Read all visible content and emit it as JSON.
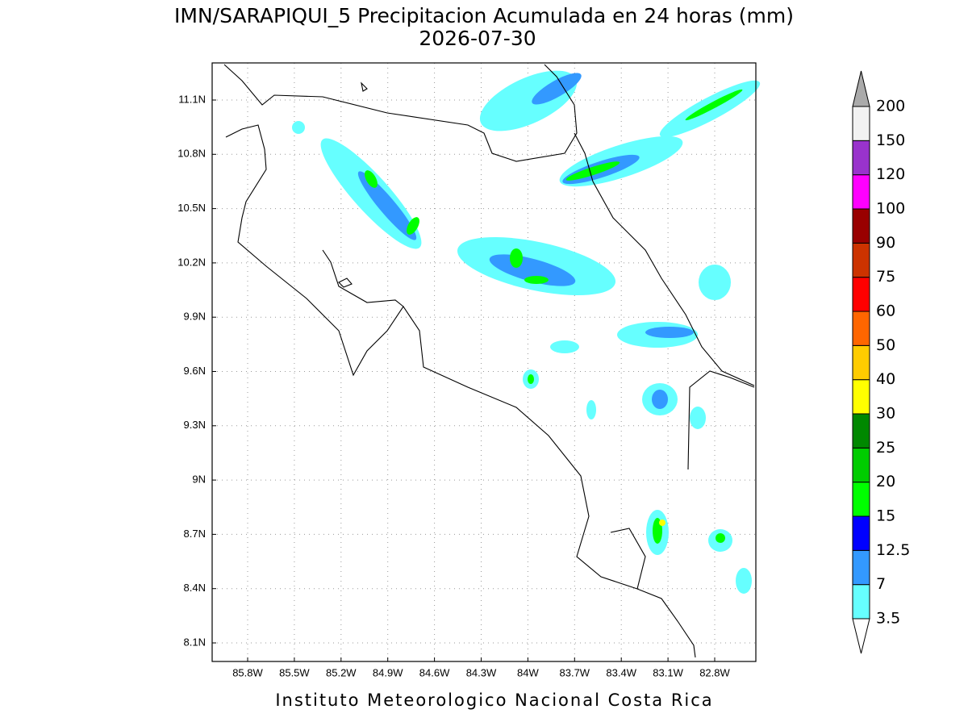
{
  "map": {
    "title": "IMN/SARAPIQUI_5 Precipitacion Acumulada en 24 horas (mm)",
    "subtitle": "2026-07-30",
    "lon_labels": [
      "85.8W",
      "85.5W",
      "85.2W",
      "84.9W",
      "84.6W",
      "84.3W",
      "84W",
      "83.7W",
      "83.4W",
      "83.1W",
      "82.8W"
    ],
    "lat_labels": [
      "11.1N",
      "10.8N",
      "10.5N",
      "10.2N",
      "9.9N",
      "9.6N",
      "9.3N",
      "9N",
      "8.7N",
      "8.4N",
      "8.1N"
    ],
    "grid": true,
    "colorbar": {
      "levels": [
        3.5,
        7,
        12.5,
        15,
        20,
        25,
        30,
        40,
        50,
        60,
        75,
        90,
        100,
        120,
        150,
        200
      ],
      "colors": [
        "#66ffff",
        "#3399ff",
        "#0000ff",
        "#00ff00",
        "#00cc00",
        "#008800",
        "#ffff00",
        "#ffcc00",
        "#ff6600",
        "#ff0000",
        "#cc3300",
        "#990000",
        "#ff00ff",
        "#9933cc",
        "#f2f2f2"
      ],
      "under_color": "#ffffff",
      "over_color": "#aaaaaa"
    },
    "footer": "Instituto Meteorologico Nacional Costa Rica"
  }
}
